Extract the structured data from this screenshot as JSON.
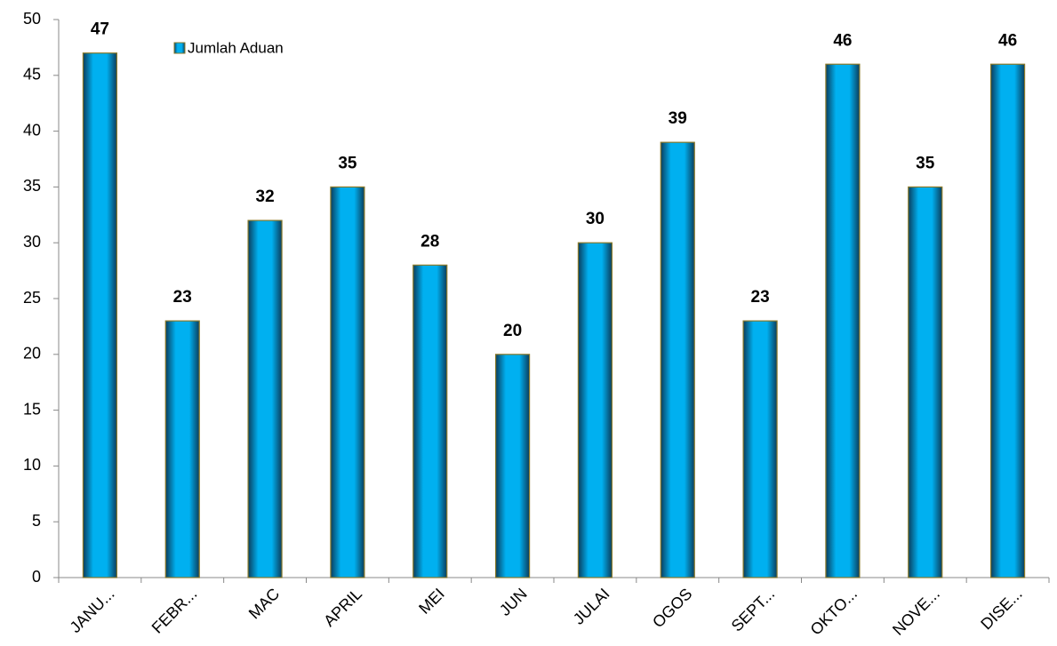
{
  "chart_data": {
    "type": "bar",
    "categories": [
      "JANU...",
      "FEBR...",
      "MAC",
      "APRIL",
      "MEI",
      "JUN",
      "JULAI",
      "OGOS",
      "SEPT...",
      "OKTO...",
      "NOVE...",
      "DISE..."
    ],
    "series": [
      {
        "name": "Jumlah Aduan",
        "color": "#00b0f0",
        "values": [
          47,
          23,
          32,
          35,
          28,
          20,
          30,
          39,
          23,
          46,
          35,
          46
        ]
      }
    ],
    "ylim": [
      0,
      50
    ],
    "yticks": [
      0,
      5,
      10,
      15,
      20,
      25,
      30,
      35,
      40,
      45,
      50
    ],
    "legend": "top-left",
    "grid": false
  }
}
